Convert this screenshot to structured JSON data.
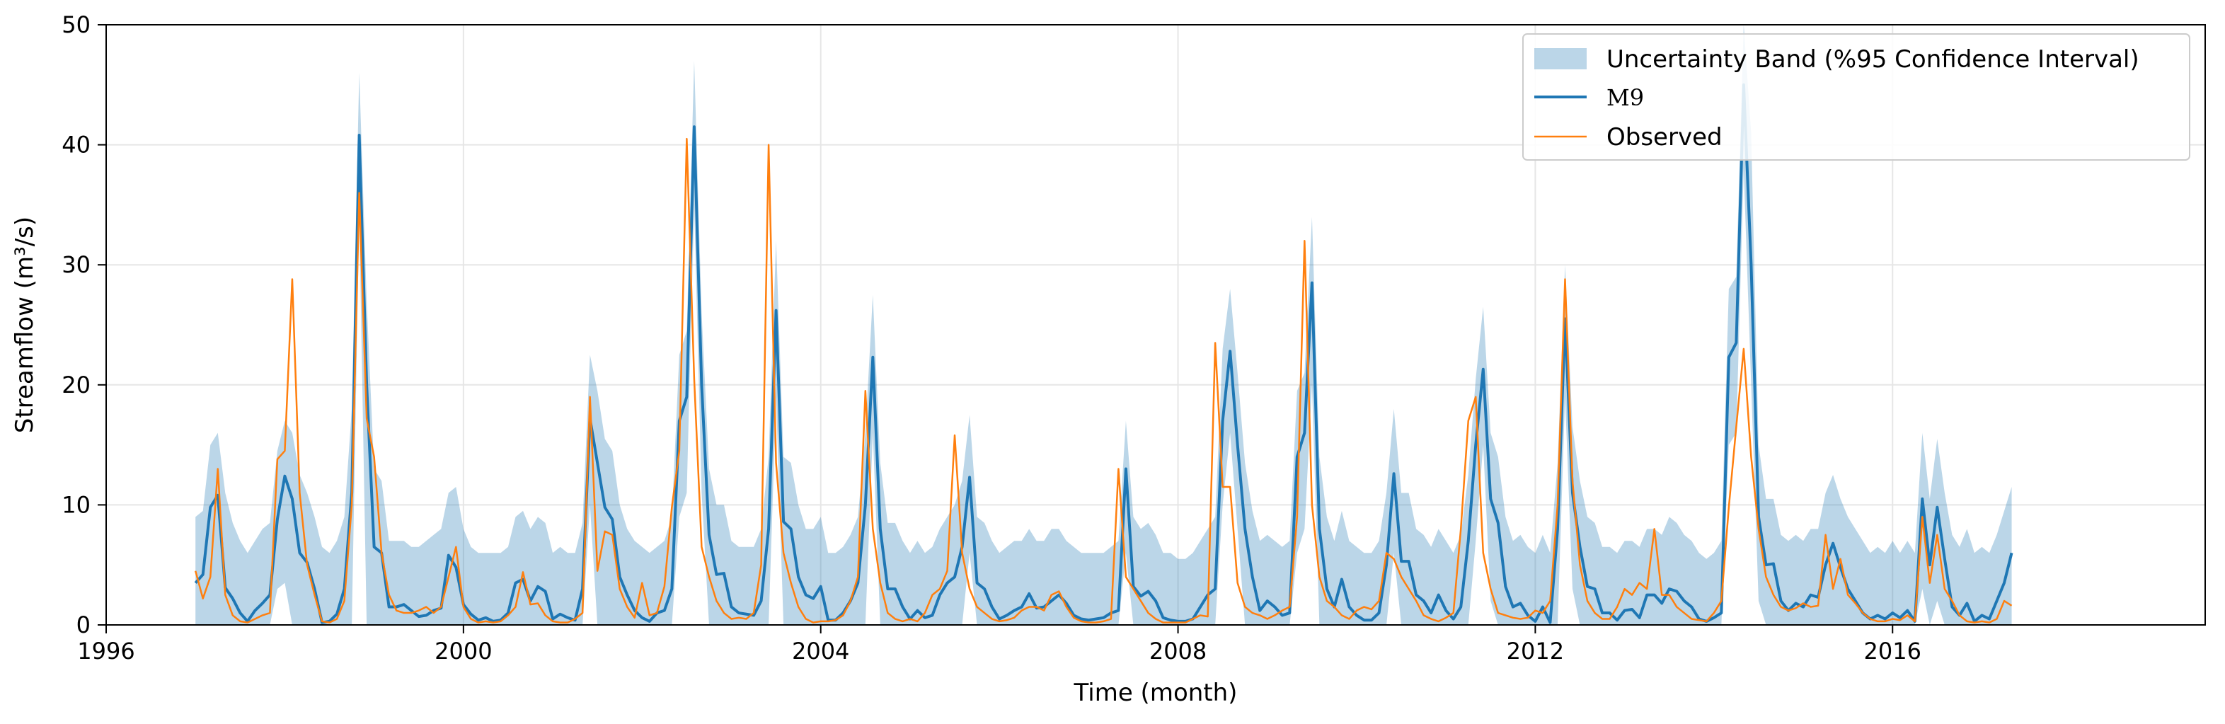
{
  "colors": {
    "band": "#1f77b4",
    "model": "#1f77b4",
    "observed": "#ff7f0e",
    "grid": "#e6e6e6"
  },
  "chart_data": {
    "type": "line",
    "xlabel": "Time (month)",
    "ylabel": "Streamflow (m³/s)",
    "xlim": [
      1996,
      2019.5
    ],
    "ylim": [
      0,
      50
    ],
    "xticks": [
      1996,
      2000,
      2004,
      2008,
      2012,
      2016
    ],
    "yticks": [
      0,
      10,
      20,
      30,
      40,
      50
    ],
    "grid": true,
    "legend_position": "top-right",
    "start_year": 1997,
    "months_per_step": 1,
    "legend": {
      "band": "Uncertainty Band (%95 Confidence Interval)",
      "model": "M9",
      "observed": "Observed"
    },
    "series": [
      {
        "name": "M9",
        "kind": "line",
        "values": [
          3.5,
          4.2,
          9.8,
          10.8,
          3.1,
          2.2,
          1.0,
          0.3,
          1.2,
          1.8,
          2.5,
          8.8,
          12.4,
          10.5,
          6.0,
          5.2,
          3.0,
          0.2,
          0.3,
          0.9,
          3.0,
          11.0,
          40.8,
          20.0,
          6.5,
          6.0,
          1.5,
          1.5,
          1.7,
          1.2,
          0.7,
          0.8,
          1.2,
          1.4,
          5.8,
          4.8,
          1.7,
          0.9,
          0.4,
          0.6,
          0.3,
          0.4,
          1.0,
          3.5,
          3.8,
          2.0,
          3.2,
          2.8,
          0.5,
          0.9,
          0.6,
          0.4,
          3.0,
          17.2,
          13.5,
          9.8,
          8.8,
          4.0,
          2.5,
          1.2,
          0.6,
          0.3,
          1.0,
          1.2,
          3.0,
          17.0,
          19.0,
          41.5,
          20.0,
          7.5,
          4.2,
          4.3,
          1.5,
          1.0,
          0.9,
          0.8,
          2.0,
          8.0,
          26.2,
          8.6,
          8.0,
          4.0,
          2.5,
          2.2,
          3.2,
          0.4,
          0.4,
          1.0,
          2.0,
          3.5,
          10.0,
          22.3,
          8.0,
          3.0,
          3.0,
          1.5,
          0.5,
          1.2,
          0.6,
          0.8,
          2.5,
          3.5,
          4.0,
          6.5,
          12.3,
          3.5,
          3.0,
          1.5,
          0.5,
          0.8,
          1.2,
          1.5,
          2.6,
          1.4,
          1.5,
          2.0,
          2.5,
          1.8,
          0.8,
          0.5,
          0.4,
          0.5,
          0.6,
          1.0,
          1.2,
          13.0,
          3.2,
          2.4,
          2.8,
          2.0,
          0.6,
          0.4,
          0.3,
          0.3,
          0.5,
          1.5,
          2.5,
          3.0,
          17.0,
          22.8,
          15.0,
          8.0,
          4.0,
          1.2,
          2.0,
          1.5,
          0.8,
          1.0,
          14.0,
          16.0,
          28.5,
          8.0,
          3.0,
          1.5,
          3.8,
          1.5,
          0.8,
          0.4,
          0.4,
          1.0,
          5.0,
          12.6,
          5.3,
          5.3,
          2.5,
          2.0,
          1.0,
          2.5,
          1.2,
          0.5,
          1.5,
          7.0,
          15.0,
          21.3,
          10.5,
          8.5,
          3.2,
          1.5,
          1.8,
          0.8,
          0.3,
          1.5,
          0.2,
          8.0,
          25.5,
          11.0,
          6.5,
          3.2,
          3.0,
          1.0,
          1.0,
          0.4,
          1.2,
          1.3,
          0.6,
          2.5,
          2.5,
          1.8,
          3.0,
          2.8,
          2.0,
          1.5,
          0.5,
          0.3,
          0.6,
          1.0,
          22.3,
          23.5,
          45.0,
          30.0,
          9.0,
          5.0,
          5.1,
          2.0,
          1.2,
          1.8,
          1.5,
          2.5,
          2.3,
          5.0,
          6.8,
          4.8,
          3.0,
          2.0,
          1.0,
          0.5,
          0.8,
          0.5,
          1.0,
          0.6,
          1.2,
          0.3,
          10.5,
          5.0,
          9.8,
          5.5,
          1.5,
          0.8,
          1.8,
          0.3,
          0.8,
          0.5,
          2.0,
          3.5,
          6.0
        ]
      },
      {
        "name": "Observed",
        "kind": "line",
        "values": [
          4.5,
          2.2,
          4.0,
          13.0,
          2.5,
          0.8,
          0.3,
          0.2,
          0.5,
          0.8,
          1.0,
          13.8,
          14.5,
          28.8,
          11.0,
          5.0,
          2.5,
          0.3,
          0.2,
          0.5,
          2.0,
          10.0,
          36.0,
          17.2,
          14.0,
          6.0,
          2.5,
          1.2,
          1.0,
          1.0,
          1.2,
          1.5,
          1.0,
          1.5,
          4.0,
          6.5,
          1.5,
          0.5,
          0.2,
          0.3,
          0.2,
          0.3,
          0.8,
          1.5,
          4.4,
          1.7,
          1.8,
          0.8,
          0.3,
          0.2,
          0.2,
          0.5,
          1.0,
          19.0,
          4.5,
          7.8,
          7.5,
          3.0,
          1.5,
          0.6,
          3.5,
          0.8,
          1.0,
          3.2,
          9.8,
          14.5,
          40.5,
          20.5,
          6.5,
          4.0,
          2.0,
          1.0,
          0.5,
          0.6,
          0.5,
          1.0,
          5.0,
          40.0,
          13.5,
          6.0,
          3.5,
          1.5,
          0.5,
          0.2,
          0.3,
          0.3,
          0.4,
          0.8,
          2.0,
          4.0,
          19.5,
          8.0,
          3.5,
          1.0,
          0.5,
          0.3,
          0.5,
          0.3,
          1.0,
          2.5,
          3.0,
          4.5,
          15.8,
          6.0,
          3.0,
          1.5,
          1.0,
          0.5,
          0.3,
          0.4,
          0.6,
          1.2,
          1.5,
          1.5,
          1.2,
          2.5,
          2.8,
          1.5,
          0.6,
          0.3,
          0.2,
          0.2,
          0.3,
          0.5,
          13.0,
          4.0,
          3.0,
          2.0,
          1.0,
          0.5,
          0.2,
          0.2,
          0.2,
          0.2,
          0.5,
          0.8,
          0.7,
          23.5,
          11.5,
          11.5,
          3.5,
          1.5,
          1.0,
          0.8,
          0.5,
          0.8,
          1.2,
          1.5,
          9.0,
          32.0,
          10.0,
          4.0,
          2.0,
          1.5,
          0.8,
          0.5,
          1.2,
          1.5,
          1.3,
          2.0,
          6.0,
          5.5,
          4.0,
          3.0,
          2.0,
          0.8,
          0.5,
          0.3,
          0.6,
          1.0,
          8.0,
          17.0,
          19.0,
          6.0,
          3.0,
          1.0,
          0.8,
          0.6,
          0.5,
          0.6,
          1.2,
          1.0,
          2.0,
          10.0,
          28.8,
          12.0,
          5.0,
          2.0,
          1.0,
          0.5,
          0.5,
          1.5,
          3.0,
          2.5,
          3.5,
          3.0,
          8.0,
          2.5,
          2.5,
          1.5,
          1.0,
          0.5,
          0.4,
          0.3,
          1.0,
          2.0,
          9.8,
          16.5,
          23.0,
          14.0,
          8.0,
          4.0,
          2.5,
          1.5,
          1.2,
          1.4,
          1.8,
          1.5,
          1.6,
          7.5,
          3.0,
          5.5,
          2.5,
          1.8,
          1.0,
          0.5,
          0.3,
          0.3,
          0.5,
          0.4,
          0.8,
          0.3,
          9.0,
          3.5,
          7.5,
          3.0,
          2.0,
          0.8,
          0.3,
          0.2,
          0.3,
          0.2,
          0.5,
          2.0,
          1.6
        ]
      },
      {
        "name": "Uncertainty Band (%95 Confidence Interval)",
        "kind": "band",
        "lower": [
          0,
          0,
          0,
          0,
          0,
          0,
          0,
          0,
          0,
          0,
          0,
          3.0,
          3.5,
          0,
          0,
          0,
          0,
          0,
          0,
          0,
          0,
          0,
          34.0,
          0,
          0,
          0,
          0,
          0,
          0,
          0,
          0,
          0,
          0,
          0,
          0,
          0,
          0,
          0,
          0,
          0,
          0,
          0,
          0,
          0,
          0,
          0,
          0,
          0,
          0,
          0,
          0,
          0,
          0,
          10.0,
          0,
          0,
          0,
          0,
          0,
          0,
          0,
          0,
          0,
          0,
          0,
          9.0,
          11.0,
          35.0,
          11.0,
          0,
          0,
          0,
          0,
          0,
          0,
          0,
          0,
          0,
          19.0,
          0,
          0,
          0,
          0,
          0,
          0,
          0,
          0,
          0,
          0,
          0,
          0,
          16.0,
          0,
          0,
          0,
          0,
          0,
          0,
          0,
          0,
          0,
          0,
          0,
          0,
          6.0,
          0,
          0,
          0,
          0,
          0,
          0,
          0,
          0,
          0,
          0,
          0,
          0,
          0,
          0,
          0,
          0,
          0,
          0,
          0,
          0,
          6.0,
          0,
          0,
          0,
          0,
          0,
          0,
          0,
          0,
          0,
          0,
          0,
          0,
          10.0,
          16.0,
          8.0,
          0,
          0,
          0,
          0,
          0,
          0,
          0,
          6.0,
          8.0,
          20.0,
          0,
          0,
          0,
          0,
          0,
          0,
          0,
          0,
          0,
          0,
          6.0,
          0,
          0,
          0,
          0,
          0,
          0,
          0,
          0,
          0,
          0,
          7.0,
          15.0,
          2.0,
          0,
          0,
          0,
          0,
          0,
          0,
          0,
          0,
          0,
          19.0,
          3.0,
          0,
          0,
          0,
          0,
          0,
          0,
          0,
          0,
          0,
          0,
          0,
          0,
          0,
          0,
          0,
          0,
          0,
          0,
          0,
          0,
          15.0,
          16.0,
          38.0,
          20.0,
          2.0,
          0,
          0,
          0,
          0,
          0,
          0,
          0,
          0,
          0,
          0,
          0,
          0,
          0,
          0,
          0,
          0,
          0,
          0,
          0,
          0,
          0,
          3.0,
          0,
          2.0,
          0,
          0,
          0,
          0,
          0,
          0,
          0,
          0,
          0,
          0
        ],
        "upper": [
          9.0,
          9.5,
          15.0,
          16.0,
          11.0,
          8.5,
          7.0,
          6.0,
          7.0,
          8.0,
          8.5,
          14.5,
          17.0,
          16.0,
          12.5,
          11.0,
          9.0,
          6.5,
          6.0,
          7.0,
          9.0,
          18.0,
          46.0,
          27.0,
          13.0,
          12.0,
          7.0,
          7.0,
          7.0,
          6.5,
          6.5,
          7.0,
          7.5,
          8.0,
          11.0,
          11.5,
          8.0,
          6.5,
          6.0,
          6.0,
          6.0,
          6.0,
          6.5,
          9.0,
          9.5,
          8.0,
          9.0,
          8.5,
          6.0,
          6.5,
          6.0,
          6.0,
          8.5,
          22.5,
          19.5,
          15.5,
          14.5,
          10.0,
          8.0,
          7.0,
          6.5,
          6.0,
          6.5,
          7.0,
          9.0,
          22.5,
          24.5,
          47.0,
          26.0,
          13.0,
          10.0,
          10.0,
          7.0,
          6.5,
          6.5,
          6.5,
          8.0,
          14.0,
          32.0,
          14.0,
          13.5,
          10.0,
          8.0,
          8.0,
          9.0,
          6.0,
          6.0,
          6.5,
          7.5,
          9.0,
          16.0,
          27.5,
          13.5,
          8.5,
          8.5,
          7.0,
          6.0,
          7.0,
          6.0,
          6.5,
          8.0,
          9.0,
          10.0,
          12.0,
          17.5,
          9.0,
          8.5,
          7.0,
          6.0,
          6.5,
          7.0,
          7.0,
          8.0,
          7.0,
          7.0,
          8.0,
          8.0,
          7.0,
          6.5,
          6.0,
          6.0,
          6.0,
          6.0,
          6.5,
          7.0,
          17.0,
          9.0,
          8.0,
          8.5,
          7.5,
          6.0,
          6.0,
          5.5,
          5.5,
          6.0,
          7.0,
          8.0,
          9.0,
          23.0,
          28.0,
          21.0,
          13.5,
          9.5,
          7.0,
          7.5,
          7.0,
          6.5,
          7.0,
          19.5,
          21.0,
          34.0,
          14.0,
          9.0,
          7.0,
          9.5,
          7.0,
          6.5,
          6.0,
          6.0,
          7.0,
          11.0,
          18.0,
          11.0,
          11.0,
          8.0,
          7.5,
          6.5,
          8.0,
          7.0,
          6.0,
          7.5,
          12.5,
          20.5,
          26.5,
          16.0,
          14.0,
          9.0,
          7.0,
          7.5,
          6.5,
          6.0,
          7.5,
          6.0,
          13.5,
          30.0,
          16.5,
          12.0,
          9.0,
          8.5,
          6.5,
          6.5,
          6.0,
          7.0,
          7.0,
          6.5,
          8.0,
          8.0,
          7.5,
          9.0,
          8.5,
          7.5,
          7.0,
          6.0,
          5.5,
          6.0,
          7.0,
          28.0,
          29.0,
          50.0,
          41.0,
          15.0,
          10.5,
          10.5,
          7.5,
          7.0,
          7.5,
          7.0,
          8.0,
          8.0,
          11.0,
          12.5,
          10.5,
          9.0,
          8.0,
          7.0,
          6.0,
          6.5,
          6.0,
          7.0,
          6.0,
          7.0,
          6.0,
          16.0,
          10.5,
          15.5,
          11.0,
          7.5,
          6.5,
          8.0,
          6.0,
          6.5,
          6.0,
          7.5,
          9.5,
          11.5
        ]
      }
    ]
  }
}
